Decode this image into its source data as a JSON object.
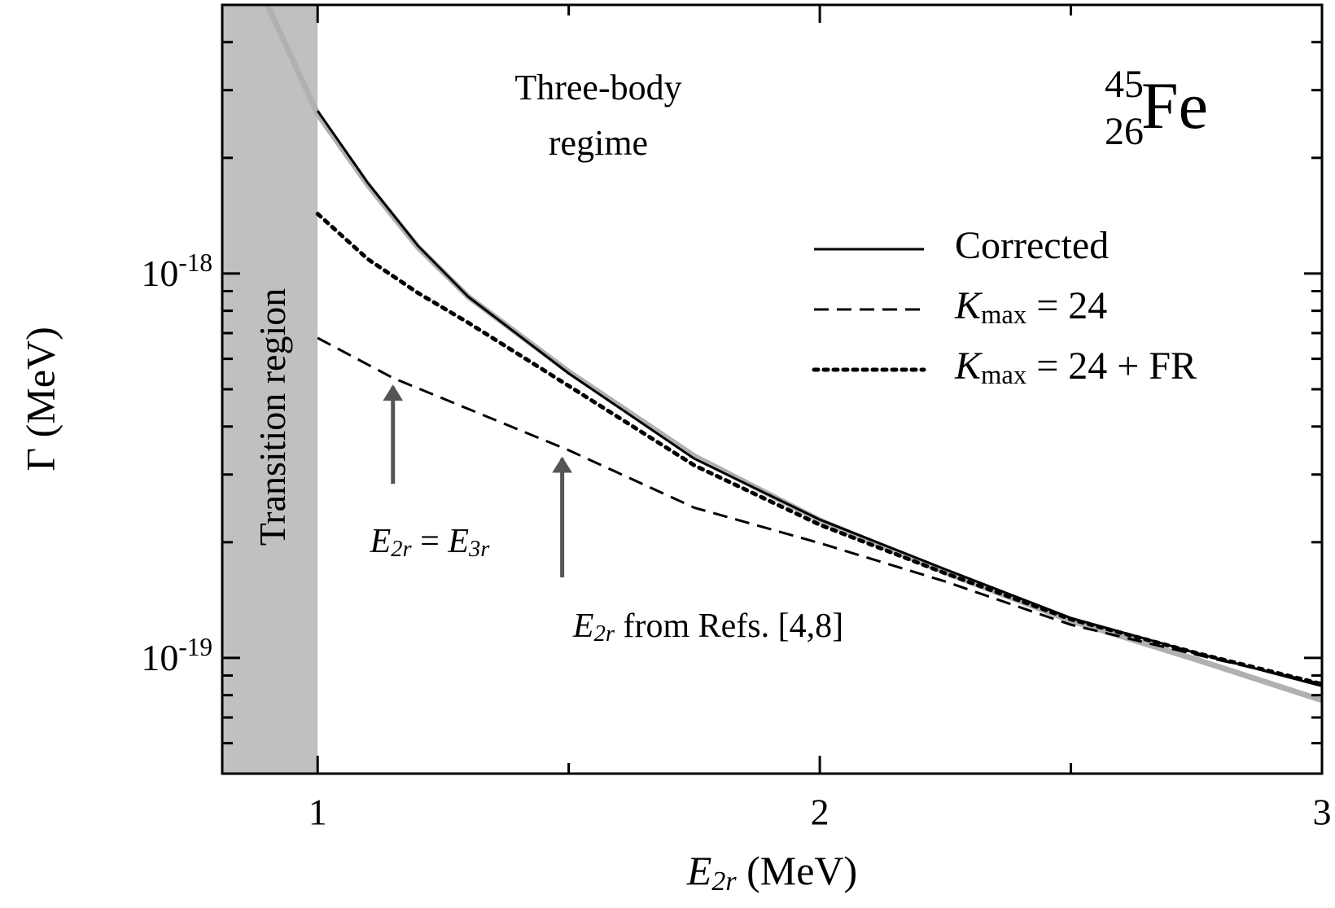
{
  "chart_data": {
    "type": "line",
    "x_label": [
      {
        "text": "E",
        "italic": true
      },
      {
        "text": "2r",
        "sub": true,
        "italic": true
      },
      {
        "text": "  (MeV)"
      }
    ],
    "y_label": "Γ  (MeV)",
    "xlim": [
      0.81,
      3
    ],
    "ylim": [
      5e-20,
      5e-18
    ],
    "log_y": true,
    "xticks": [
      1,
      2,
      3
    ],
    "x_minor_ticks": [
      1.5,
      2.5
    ],
    "yticks": [
      {
        "value": 1e-19,
        "label": [
          {
            "text": "10"
          },
          {
            "text": "-19",
            "sup": true
          }
        ]
      },
      {
        "value": 1e-18,
        "label": [
          {
            "text": "10"
          },
          {
            "text": "-18",
            "sup": true
          }
        ]
      }
    ],
    "y_minor_ticks": [
      6e-20,
      7e-20,
      8e-20,
      9e-20,
      2e-19,
      3e-19,
      4e-19,
      5e-19,
      6e-19,
      7e-19,
      8e-19,
      9e-19,
      2e-18,
      3e-18,
      4e-18
    ],
    "shaded_region": {
      "label": "Transition region",
      "x": [
        0.81,
        1
      ],
      "color": "#c0c0c0"
    },
    "series": [
      {
        "color": "#b0b0b0",
        "style": "solid",
        "width": 7,
        "x": [
          0.9,
          0.95,
          1,
          1.1,
          1.2,
          1.3,
          1.5,
          1.75,
          2,
          2.25,
          2.5,
          2.75,
          3
        ],
        "values": [
          5e-18,
          3.6e-18,
          2.6e-18,
          1.7e-18,
          1.17e-18,
          8.7e-19,
          5.55e-19,
          3.35e-19,
          2.28e-19,
          1.67e-19,
          1.25e-19,
          9.9e-20,
          7.76e-20
        ]
      },
      {
        "name": "Corrected",
        "color": "#000000",
        "style": "solid",
        "width": 3,
        "x": [
          1,
          1.1,
          1.2,
          1.3,
          1.5,
          1.75,
          2,
          2.25,
          2.5,
          2.75,
          3
        ],
        "values": [
          2.65e-18,
          1.72e-18,
          1.18e-18,
          8.7e-19,
          5.5e-19,
          3.3e-19,
          2.29e-19,
          1.7e-19,
          1.27e-19,
          1.03e-19,
          8.45e-20
        ]
      },
      {
        "name": [
          {
            "text": "K",
            "italic": true
          },
          {
            "text": "max",
            "sub": true
          },
          {
            "text": " = 24"
          }
        ],
        "color": "#000000",
        "style": "dashed",
        "width": 3,
        "x": [
          1,
          1.15,
          1.5,
          1.75,
          2,
          2.25,
          2.5,
          2.75,
          3
        ],
        "values": [
          6.8e-19,
          5.35e-19,
          3.47e-19,
          2.46e-19,
          1.99e-19,
          1.58e-19,
          1.22e-19,
          1.02e-19,
          8.55e-20
        ]
      },
      {
        "name": [
          {
            "text": "K",
            "italic": true
          },
          {
            "text": "max",
            "sub": true
          },
          {
            "text": " = 24 + FR"
          }
        ],
        "color": "#000000",
        "style": "dotted",
        "width": 5,
        "x": [
          1,
          1.1,
          1.2,
          1.3,
          1.5,
          1.75,
          2,
          2.25,
          2.5,
          2.75,
          3
        ],
        "values": [
          1.43e-18,
          1.09e-18,
          8.9e-19,
          7.45e-19,
          5.1e-19,
          3.17e-19,
          2.22e-19,
          1.66e-19,
          1.26e-19,
          1.03e-19,
          8.55e-20
        ]
      }
    ],
    "annotations": [
      {
        "lines": [
          "Three-body",
          "regime"
        ]
      },
      {
        "text": [
          {
            "text": "E",
            "italic": true
          },
          {
            "text": "2r",
            "sub": true,
            "italic": true
          },
          {
            "text": " = "
          },
          {
            "text": "E",
            "italic": true
          },
          {
            "text": "3r",
            "sub": true,
            "italic": true
          }
        ],
        "arrow": {
          "x": 1.15,
          "from": 2.84e-19,
          "to": 5.08e-19
        }
      },
      {
        "text": [
          {
            "text": "E",
            "italic": true
          },
          {
            "text": "2r",
            "sub": true,
            "italic": true
          },
          {
            "text": "  from Refs. [4,8]"
          }
        ],
        "arrow": {
          "x": 1.487,
          "from": 1.62e-19,
          "to": 3.3e-19
        }
      }
    ],
    "nuclide": {
      "mass": "45",
      "charge": "26",
      "symbol": "Fe"
    }
  }
}
